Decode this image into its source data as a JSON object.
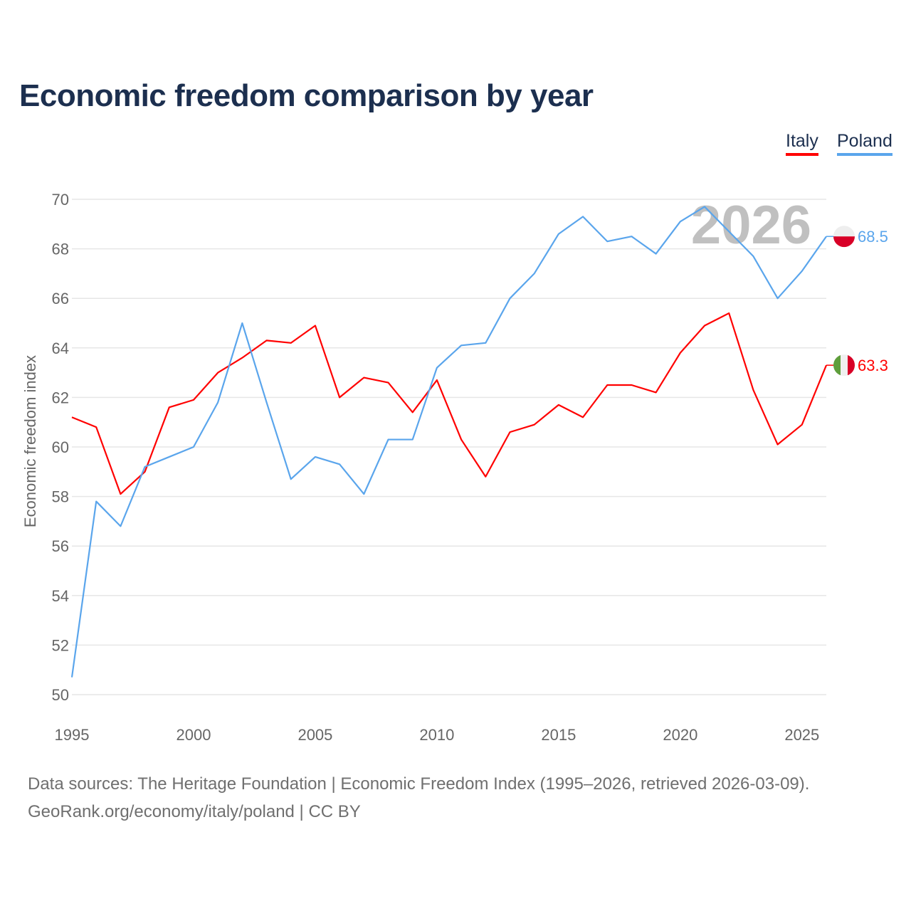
{
  "chart_data": {
    "type": "line",
    "title": "Economic freedom comparison by year",
    "xlabel": "",
    "ylabel": "Economic freedom index",
    "xlim": [
      1995,
      2026
    ],
    "ylim": [
      50,
      70
    ],
    "yticks": [
      50,
      52,
      54,
      56,
      58,
      60,
      62,
      64,
      66,
      68,
      70
    ],
    "xticks": [
      1995,
      2000,
      2005,
      2010,
      2015,
      2020,
      2025
    ],
    "grid": true,
    "legend_position": "top-right",
    "watermark_year": "2026",
    "x": [
      1995,
      1996,
      1997,
      1998,
      1999,
      2000,
      2001,
      2002,
      2003,
      2004,
      2005,
      2006,
      2007,
      2008,
      2009,
      2010,
      2011,
      2012,
      2013,
      2014,
      2015,
      2016,
      2017,
      2018,
      2019,
      2020,
      2021,
      2022,
      2023,
      2024,
      2025,
      2026
    ],
    "series": [
      {
        "name": "Italy",
        "color": "#ff0000",
        "end_label": "63.3",
        "values": [
          61.2,
          60.8,
          58.1,
          59.0,
          61.6,
          61.9,
          63.0,
          63.6,
          64.3,
          64.2,
          64.9,
          62.0,
          62.8,
          62.6,
          61.4,
          62.7,
          60.3,
          58.8,
          60.6,
          60.9,
          61.7,
          61.2,
          62.5,
          62.5,
          62.2,
          63.8,
          64.9,
          65.4,
          62.3,
          60.1,
          60.9,
          63.3
        ]
      },
      {
        "name": "Poland",
        "color": "#5aa5ec",
        "end_label": "68.5",
        "values": [
          50.7,
          57.8,
          56.8,
          59.2,
          59.6,
          60.0,
          61.8,
          65.0,
          61.8,
          58.7,
          59.6,
          59.3,
          58.1,
          60.3,
          60.3,
          63.2,
          64.1,
          64.2,
          66.0,
          67.0,
          68.6,
          69.3,
          68.3,
          68.5,
          67.8,
          69.1,
          69.7,
          68.7,
          67.7,
          66.0,
          67.1,
          68.5
        ]
      }
    ]
  },
  "footer": {
    "sources": "Data sources: The Heritage Foundation | Economic Freedom Index (1995–2026, retrieved 2026-03-09).",
    "credit": "GeoRank.org/economy/italy/poland | CC BY"
  }
}
